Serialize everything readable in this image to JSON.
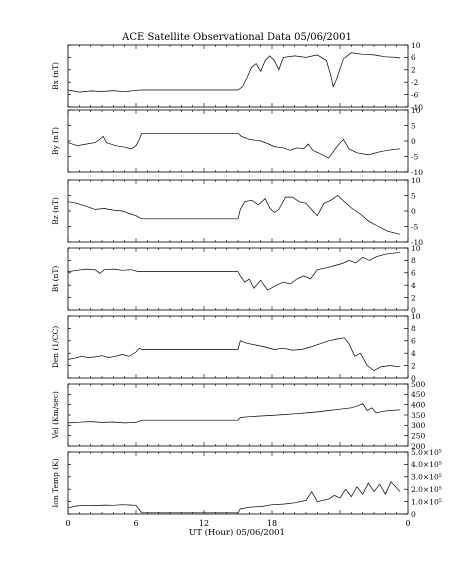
{
  "title": "ACE Satellite Observational Data   05/06/2001",
  "xlabel": "UT (Hour)   05/06/2001",
  "x_ticks": [
    "0",
    "6",
    "12",
    "18",
    "0"
  ],
  "chart_data": [
    {
      "type": "line",
      "ylabel": "Bx (nT)",
      "yticks": [
        "-10",
        "-6",
        "-2",
        "2",
        "6",
        "10"
      ],
      "ylim": [
        -10,
        10
      ],
      "series": [
        {
          "points": [
            [
              0,
              -4.5
            ],
            [
              1,
              -5.2
            ],
            [
              2,
              -4.8
            ],
            [
              3,
              -5.0
            ],
            [
              4,
              -4.7
            ],
            [
              5,
              -5.1
            ],
            [
              6,
              -4.6
            ],
            [
              6.5,
              -4.5
            ],
            [
              15,
              -4.5
            ],
            [
              15.4,
              -3.5
            ],
            [
              15.8,
              -0.5
            ],
            [
              16.2,
              2.8
            ],
            [
              16.6,
              4.0
            ],
            [
              17.0,
              1.5
            ],
            [
              17.4,
              5.0
            ],
            [
              17.8,
              6.5
            ],
            [
              18.2,
              5.0
            ],
            [
              18.6,
              2.0
            ],
            [
              19.0,
              6.0
            ],
            [
              20.0,
              6.5
            ],
            [
              21.0,
              6.0
            ],
            [
              22.0,
              6.8
            ],
            [
              22.8,
              5.0
            ],
            [
              23.2,
              0.0
            ],
            [
              23.4,
              -3.5
            ],
            [
              23.7,
              -1.0
            ],
            [
              24.3,
              5.5
            ],
            [
              25.0,
              7.5
            ],
            [
              26.0,
              7.0
            ],
            [
              27.0,
              6.8
            ],
            [
              28.0,
              6.2
            ],
            [
              29.0,
              6.0
            ],
            [
              29.3,
              5.8
            ]
          ]
        }
      ]
    },
    {
      "type": "line",
      "ylabel": "By (nT)",
      "yticks": [
        "-10",
        "-5",
        "0",
        "5",
        "10"
      ],
      "ylim": [
        -10,
        10
      ],
      "series": [
        {
          "points": [
            [
              0,
              -0.5
            ],
            [
              0.8,
              -1.5
            ],
            [
              1.6,
              -1.0
            ],
            [
              2.4,
              -0.5
            ],
            [
              2.8,
              0.5
            ],
            [
              3.1,
              1.5
            ],
            [
              3.4,
              -0.5
            ],
            [
              4.2,
              -1.5
            ],
            [
              5.0,
              -2.0
            ],
            [
              5.6,
              -2.5
            ],
            [
              6.0,
              -1.5
            ],
            [
              6.3,
              0.5
            ],
            [
              6.5,
              2.5
            ],
            [
              15,
              2.5
            ],
            [
              15.3,
              1.5
            ],
            [
              16.0,
              0.5
            ],
            [
              17.0,
              0.0
            ],
            [
              17.6,
              -0.8
            ],
            [
              18.2,
              -1.8
            ],
            [
              19.0,
              -2.2
            ],
            [
              19.6,
              -3.0
            ],
            [
              20.2,
              -2.2
            ],
            [
              20.8,
              -2.5
            ],
            [
              21.2,
              -1.0
            ],
            [
              21.6,
              -3.0
            ],
            [
              22.2,
              -4.0
            ],
            [
              23.0,
              -5.5
            ],
            [
              23.5,
              -3.0
            ],
            [
              23.8,
              -1.5
            ],
            [
              24.3,
              0.5
            ],
            [
              24.8,
              -2.5
            ],
            [
              25.5,
              -3.8
            ],
            [
              26.5,
              -4.5
            ],
            [
              27.5,
              -3.5
            ],
            [
              28.2,
              -3.0
            ],
            [
              29.3,
              -2.5
            ]
          ]
        }
      ]
    },
    {
      "type": "line",
      "ylabel": "Bz (nT)",
      "yticks": [
        "-10",
        "-5",
        "0",
        "5",
        "10"
      ],
      "ylim": [
        -10,
        10
      ],
      "series": [
        {
          "points": [
            [
              0,
              3.0
            ],
            [
              0.8,
              2.5
            ],
            [
              1.6,
              1.5
            ],
            [
              2.4,
              0.5
            ],
            [
              3.2,
              0.8
            ],
            [
              4.0,
              0.3
            ],
            [
              4.8,
              0.0
            ],
            [
              5.4,
              -0.8
            ],
            [
              6.0,
              -1.5
            ],
            [
              6.5,
              -2.5
            ],
            [
              15,
              -2.5
            ],
            [
              15.2,
              0.5
            ],
            [
              15.6,
              3.0
            ],
            [
              16.2,
              3.5
            ],
            [
              16.8,
              2.0
            ],
            [
              17.4,
              4.0
            ],
            [
              17.8,
              1.0
            ],
            [
              18.2,
              -0.5
            ],
            [
              18.6,
              0.5
            ],
            [
              19.2,
              4.5
            ],
            [
              19.8,
              4.5
            ],
            [
              20.4,
              3.0
            ],
            [
              21.0,
              2.5
            ],
            [
              21.6,
              0.0
            ],
            [
              22.0,
              -1.5
            ],
            [
              22.6,
              2.5
            ],
            [
              23.2,
              3.5
            ],
            [
              23.8,
              5.0
            ],
            [
              24.4,
              3.0
            ],
            [
              25.0,
              1.0
            ],
            [
              25.8,
              -1.0
            ],
            [
              26.6,
              -3.5
            ],
            [
              27.4,
              -5.0
            ],
            [
              28.2,
              -6.5
            ],
            [
              29.3,
              -7.5
            ]
          ]
        }
      ]
    },
    {
      "type": "line",
      "ylabel": "Bt (nT)",
      "yticks": [
        "0",
        "2",
        "4",
        "6",
        "8",
        "10"
      ],
      "ylim": [
        0,
        10
      ],
      "series": [
        {
          "points": [
            [
              0,
              6.2
            ],
            [
              0.8,
              6.4
            ],
            [
              1.6,
              6.6
            ],
            [
              2.4,
              6.5
            ],
            [
              2.8,
              5.9
            ],
            [
              3.2,
              6.5
            ],
            [
              4.0,
              6.6
            ],
            [
              4.8,
              6.4
            ],
            [
              5.6,
              6.5
            ],
            [
              6.2,
              6.2
            ],
            [
              6.5,
              6.2
            ],
            [
              15,
              6.2
            ],
            [
              15.2,
              5.5
            ],
            [
              15.6,
              4.5
            ],
            [
              16.0,
              5.0
            ],
            [
              16.4,
              3.5
            ],
            [
              17.0,
              4.8
            ],
            [
              17.6,
              3.2
            ],
            [
              18.2,
              3.8
            ],
            [
              19.0,
              4.5
            ],
            [
              19.6,
              4.2
            ],
            [
              20.2,
              5.0
            ],
            [
              20.8,
              5.5
            ],
            [
              21.4,
              5.0
            ],
            [
              22.0,
              6.5
            ],
            [
              22.8,
              6.8
            ],
            [
              23.6,
              7.2
            ],
            [
              24.2,
              7.5
            ],
            [
              24.8,
              8.0
            ],
            [
              25.4,
              7.6
            ],
            [
              26.0,
              8.5
            ],
            [
              26.6,
              8.0
            ],
            [
              27.2,
              8.6
            ],
            [
              28.0,
              9.0
            ],
            [
              29.3,
              9.3
            ]
          ]
        }
      ]
    },
    {
      "type": "line",
      "ylabel": "Den (1/CC)",
      "yticks": [
        "0",
        "2",
        "4",
        "6",
        "8",
        "10"
      ],
      "ylim": [
        0,
        10
      ],
      "series": [
        {
          "points": [
            [
              0,
              3.0
            ],
            [
              0.6,
              3.2
            ],
            [
              1.2,
              3.5
            ],
            [
              1.8,
              3.3
            ],
            [
              2.4,
              3.4
            ],
            [
              3.0,
              3.6
            ],
            [
              3.6,
              3.3
            ],
            [
              4.2,
              3.5
            ],
            [
              4.8,
              3.8
            ],
            [
              5.4,
              3.5
            ],
            [
              6.0,
              4.2
            ],
            [
              6.3,
              4.8
            ],
            [
              6.5,
              4.6
            ],
            [
              15,
              4.6
            ],
            [
              15.2,
              6.0
            ],
            [
              15.8,
              5.6
            ],
            [
              16.6,
              5.3
            ],
            [
              17.4,
              5.0
            ],
            [
              18.2,
              4.6
            ],
            [
              19.0,
              4.8
            ],
            [
              19.8,
              4.5
            ],
            [
              20.6,
              4.6
            ],
            [
              21.4,
              5.0
            ],
            [
              22.2,
              5.5
            ],
            [
              23.0,
              6.0
            ],
            [
              23.8,
              6.3
            ],
            [
              24.4,
              6.5
            ],
            [
              24.8,
              5.5
            ],
            [
              25.3,
              3.5
            ],
            [
              25.8,
              4.0
            ],
            [
              26.4,
              2.0
            ],
            [
              27.0,
              1.2
            ],
            [
              27.6,
              1.8
            ],
            [
              28.4,
              2.0
            ],
            [
              29.3,
              1.8
            ]
          ]
        }
      ]
    },
    {
      "type": "line",
      "ylabel": "Vel (Km/sec)",
      "yticks": [
        "200",
        "250",
        "300",
        "350",
        "400",
        "450",
        "500"
      ],
      "ylim": [
        200,
        500
      ],
      "series": [
        {
          "points": [
            [
              0,
              312
            ],
            [
              1,
              315
            ],
            [
              2,
              318
            ],
            [
              3,
              314
            ],
            [
              4,
              316
            ],
            [
              5,
              312
            ],
            [
              6,
              314
            ],
            [
              6.5,
              325
            ],
            [
              15,
              325
            ],
            [
              15.2,
              338
            ],
            [
              16,
              342
            ],
            [
              17,
              345
            ],
            [
              18,
              348
            ],
            [
              19,
              352
            ],
            [
              20,
              356
            ],
            [
              21,
              360
            ],
            [
              22,
              365
            ],
            [
              23,
              372
            ],
            [
              24,
              378
            ],
            [
              25,
              385
            ],
            [
              25.6,
              395
            ],
            [
              26,
              405
            ],
            [
              26.4,
              372
            ],
            [
              26.8,
              385
            ],
            [
              27.2,
              360
            ],
            [
              27.8,
              368
            ],
            [
              28.4,
              372
            ],
            [
              29.3,
              375
            ]
          ]
        }
      ]
    },
    {
      "type": "line",
      "ylabel": "Ion Temp (K)",
      "yticks": [
        "0",
        "1.0×10⁵",
        "2.0×10⁵",
        "3.0×10⁵",
        "4.0×10⁵",
        "5.0×10⁵"
      ],
      "ylim": [
        0,
        500000
      ],
      "series": [
        {
          "points": [
            [
              0,
              50000
            ],
            [
              0.8,
              65000
            ],
            [
              1.6,
              70000
            ],
            [
              2.4,
              68000
            ],
            [
              3.2,
              72000
            ],
            [
              4.0,
              70000
            ],
            [
              4.8,
              75000
            ],
            [
              5.6,
              72000
            ],
            [
              6.0,
              70000
            ],
            [
              6.5,
              10000
            ],
            [
              15,
              10000
            ],
            [
              15.2,
              40000
            ],
            [
              16,
              55000
            ],
            [
              17,
              60000
            ],
            [
              18,
              75000
            ],
            [
              19,
              80000
            ],
            [
              20,
              90000
            ],
            [
              21,
              110000
            ],
            [
              21.5,
              180000
            ],
            [
              22,
              100000
            ],
            [
              23,
              120000
            ],
            [
              23.5,
              150000
            ],
            [
              24,
              130000
            ],
            [
              24.5,
              200000
            ],
            [
              25,
              140000
            ],
            [
              25.5,
              220000
            ],
            [
              26,
              160000
            ],
            [
              26.5,
              250000
            ],
            [
              27,
              180000
            ],
            [
              27.5,
              240000
            ],
            [
              28,
              160000
            ],
            [
              28.5,
              260000
            ],
            [
              29.3,
              180000
            ]
          ]
        }
      ]
    }
  ]
}
